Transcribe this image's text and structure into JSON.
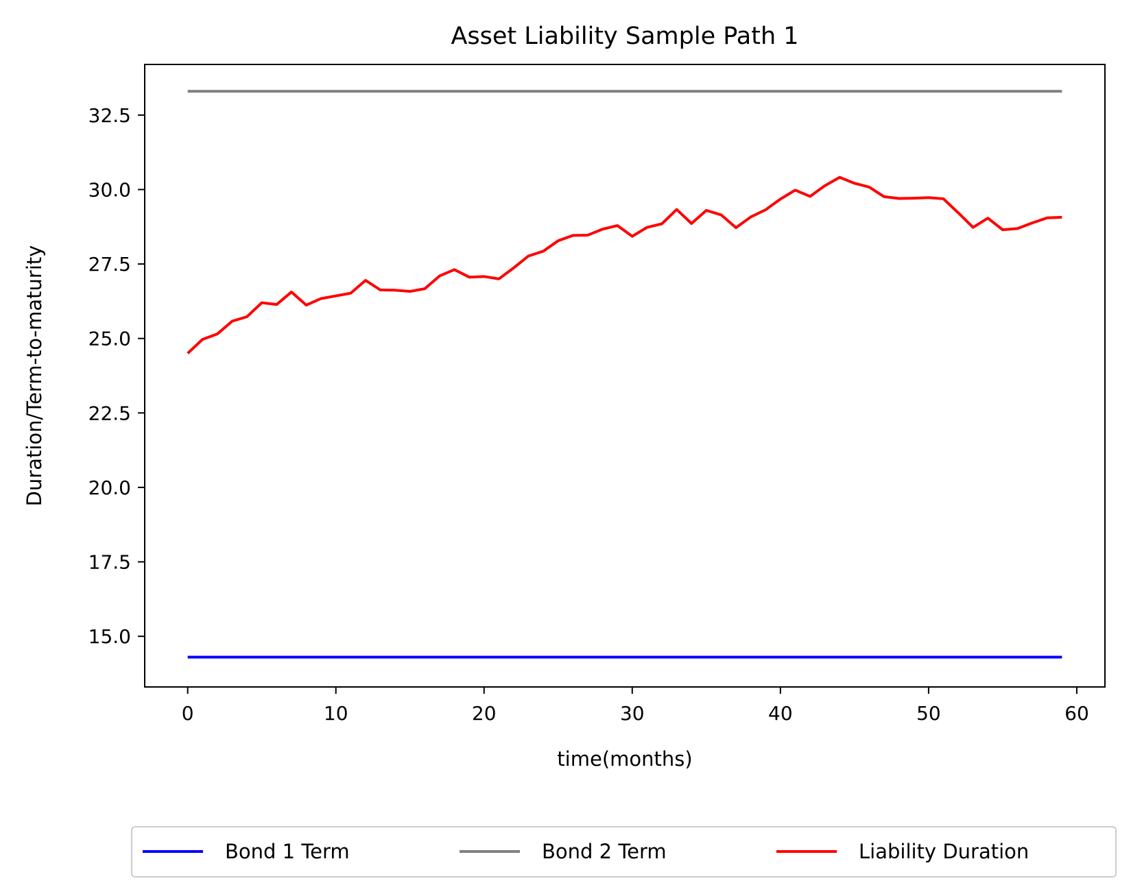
{
  "chart_data": {
    "type": "line",
    "title": "Asset Liability Sample Path 1",
    "xlabel": "time(months)",
    "ylabel": "Duration/Term-to-maturity",
    "xlim": [
      -2.9,
      61.9
    ],
    "ylim": [
      13.3,
      34.2
    ],
    "xticks": [
      0,
      10,
      20,
      30,
      40,
      50,
      60
    ],
    "yticks": [
      15.0,
      17.5,
      20.0,
      22.5,
      25.0,
      27.5,
      30.0,
      32.5
    ],
    "xtick_labels": [
      "0",
      "10",
      "20",
      "30",
      "40",
      "50",
      "60"
    ],
    "ytick_labels": [
      "15.0",
      "17.5",
      "20.0",
      "22.5",
      "25.0",
      "27.5",
      "30.0",
      "32.5"
    ],
    "grid": false,
    "legend_position": "bottom-center",
    "x": [
      0,
      1,
      2,
      3,
      4,
      5,
      6,
      7,
      8,
      9,
      10,
      11,
      12,
      13,
      14,
      15,
      16,
      17,
      18,
      19,
      20,
      21,
      22,
      23,
      24,
      25,
      26,
      27,
      28,
      29,
      30,
      31,
      32,
      33,
      34,
      35,
      36,
      37,
      38,
      39,
      40,
      41,
      42,
      43,
      44,
      45,
      46,
      47,
      48,
      49,
      50,
      51,
      52,
      53,
      54,
      55,
      56,
      57,
      58,
      59
    ],
    "series": [
      {
        "name": "Bond 1 Term",
        "color": "#0000ff",
        "values": [
          14.3,
          14.3,
          14.3,
          14.3,
          14.3,
          14.3,
          14.3,
          14.3,
          14.3,
          14.3,
          14.3,
          14.3,
          14.3,
          14.3,
          14.3,
          14.3,
          14.3,
          14.3,
          14.3,
          14.3,
          14.3,
          14.3,
          14.3,
          14.3,
          14.3,
          14.3,
          14.3,
          14.3,
          14.3,
          14.3,
          14.3,
          14.3,
          14.3,
          14.3,
          14.3,
          14.3,
          14.3,
          14.3,
          14.3,
          14.3,
          14.3,
          14.3,
          14.3,
          14.3,
          14.3,
          14.3,
          14.3,
          14.3,
          14.3,
          14.3,
          14.3,
          14.3,
          14.3,
          14.3,
          14.3,
          14.3,
          14.3,
          14.3,
          14.3,
          14.3
        ]
      },
      {
        "name": "Bond 2 Term",
        "color": "#808080",
        "values": [
          33.3,
          33.3,
          33.3,
          33.3,
          33.3,
          33.3,
          33.3,
          33.3,
          33.3,
          33.3,
          33.3,
          33.3,
          33.3,
          33.3,
          33.3,
          33.3,
          33.3,
          33.3,
          33.3,
          33.3,
          33.3,
          33.3,
          33.3,
          33.3,
          33.3,
          33.3,
          33.3,
          33.3,
          33.3,
          33.3,
          33.3,
          33.3,
          33.3,
          33.3,
          33.3,
          33.3,
          33.3,
          33.3,
          33.3,
          33.3,
          33.3,
          33.3,
          33.3,
          33.3,
          33.3,
          33.3,
          33.3,
          33.3,
          33.3,
          33.3,
          33.3,
          33.3,
          33.3,
          33.3,
          33.3,
          33.3,
          33.3,
          33.3,
          33.3,
          33.3
        ]
      },
      {
        "name": "Liability Duration",
        "color": "#ff0000",
        "values": [
          24.5,
          24.97,
          25.15,
          25.58,
          25.73,
          26.2,
          26.14,
          26.56,
          26.12,
          26.34,
          26.43,
          26.52,
          26.95,
          26.63,
          26.62,
          26.58,
          26.67,
          27.1,
          27.31,
          27.06,
          27.08,
          27.0,
          27.37,
          27.77,
          27.93,
          28.28,
          28.46,
          28.47,
          28.67,
          28.79,
          28.43,
          28.73,
          28.85,
          29.33,
          28.86,
          29.3,
          29.15,
          28.72,
          29.08,
          29.32,
          29.68,
          29.98,
          29.77,
          30.13,
          30.41,
          30.21,
          30.08,
          29.76,
          29.7,
          29.71,
          29.73,
          29.69,
          29.22,
          28.73,
          29.04,
          28.65,
          28.69,
          28.88,
          29.05,
          29.07
        ]
      }
    ]
  }
}
